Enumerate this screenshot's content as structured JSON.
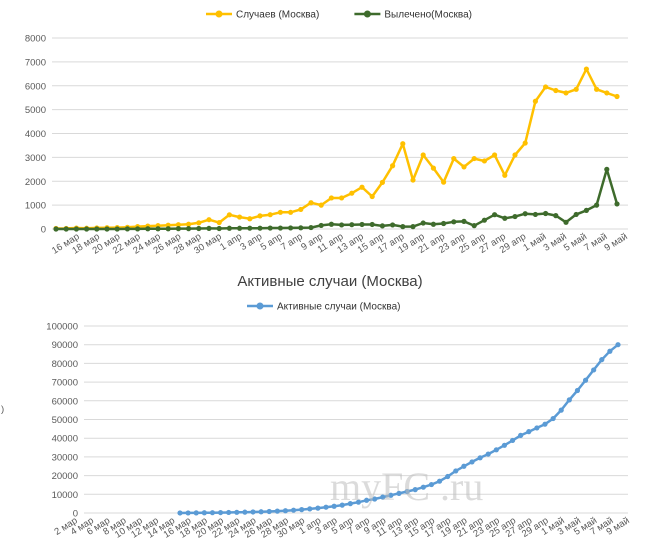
{
  "chart_data": [
    {
      "type": "line",
      "title": "",
      "legend_position": "top",
      "grid": true,
      "ylim": [
        0,
        8000
      ],
      "yticks": [
        0,
        1000,
        2000,
        3000,
        4000,
        5000,
        6000,
        7000,
        8000
      ],
      "xtick_labels": [
        "16 мар",
        "18 мар",
        "20 мар",
        "22 мар",
        "24 мар",
        "26 мар",
        "28 мар",
        "30 мар",
        "1 апр",
        "3 апр",
        "5 апр",
        "7 апр",
        "9 апр",
        "11 апр",
        "13 апр",
        "15 апр",
        "17 апр",
        "19 апр",
        "21 апр",
        "23 апр",
        "25 апр",
        "27 апр",
        "29 апр",
        "1 май",
        "3 май",
        "5 май",
        "7 май",
        "9 май"
      ],
      "series": [
        {
          "name": "Случаев (Москва)",
          "color": "#FFC000",
          "values": [
            20,
            24,
            40,
            30,
            45,
            55,
            60,
            70,
            100,
            120,
            140,
            160,
            180,
            200,
            260,
            390,
            270,
            595,
            500,
            430,
            550,
            600,
            700,
            700,
            820,
            1100,
            1000,
            1300,
            1300,
            1500,
            1750,
            1360,
            1950,
            2650,
            3570,
            2050,
            3100,
            2550,
            1960,
            2950,
            2600,
            2950,
            2850,
            3100,
            2250,
            3100,
            3600,
            5350,
            5950,
            5800,
            5700,
            5850,
            6700,
            5850,
            5700,
            5550
          ]
        },
        {
          "name": "Вылечено(Москва)",
          "color": "#3E6B2C",
          "values": [
            0,
            0,
            0,
            0,
            0,
            0,
            0,
            5,
            5,
            10,
            10,
            10,
            15,
            15,
            20,
            25,
            20,
            30,
            30,
            35,
            35,
            40,
            40,
            45,
            50,
            60,
            150,
            200,
            170,
            180,
            190,
            190,
            130,
            170,
            100,
            100,
            250,
            200,
            230,
            300,
            320,
            140,
            370,
            600,
            450,
            520,
            640,
            610,
            650,
            560,
            280,
            610,
            780,
            1000,
            2500,
            1050
          ]
        }
      ]
    },
    {
      "type": "line",
      "title": "Активные случаи (Москва)",
      "legend_position": "top",
      "grid": true,
      "ylim": [
        0,
        100000
      ],
      "yticks": [
        0,
        10000,
        20000,
        30000,
        40000,
        50000,
        60000,
        70000,
        80000,
        90000,
        100000
      ],
      "xtick_labels": [
        "2 мар",
        "4 мар",
        "6 мар",
        "8 мар",
        "10 мар",
        "12 мар",
        "14 мар",
        "16 мар",
        "18 мар",
        "20 мар",
        "22 мар",
        "24 мар",
        "26 мар",
        "28 мар",
        "30 мар",
        "1 апр",
        "3 апр",
        "5 апр",
        "7 апр",
        "9 апр",
        "11 апр",
        "13 апр",
        "15 апр",
        "17 апр",
        "19 апр",
        "21 апр",
        "23 апр",
        "25 апр",
        "27 апр",
        "29 апр",
        "1 май",
        "3 май",
        "5 май",
        "7 май",
        "9 май"
      ],
      "series": [
        {
          "name": "Активные случаи (Москва)",
          "color": "#5B9BD5",
          "values": [
            20,
            40,
            80,
            120,
            170,
            220,
            290,
            360,
            450,
            550,
            650,
            800,
            1000,
            1200,
            1500,
            1800,
            2200,
            2600,
            3100,
            3600,
            4200,
            5000,
            5800,
            6800,
            7500,
            8500,
            9500,
            10500,
            11500,
            12500,
            13800,
            15200,
            17000,
            19500,
            22500,
            25000,
            27300,
            29500,
            31500,
            33800,
            36200,
            38800,
            41500,
            43500,
            45500,
            47500,
            50500,
            55000,
            60500,
            65500,
            71000,
            76500,
            82000,
            86500,
            90000
          ]
        }
      ]
    }
  ],
  "side_label": ")",
  "watermark": "myFC .ru"
}
